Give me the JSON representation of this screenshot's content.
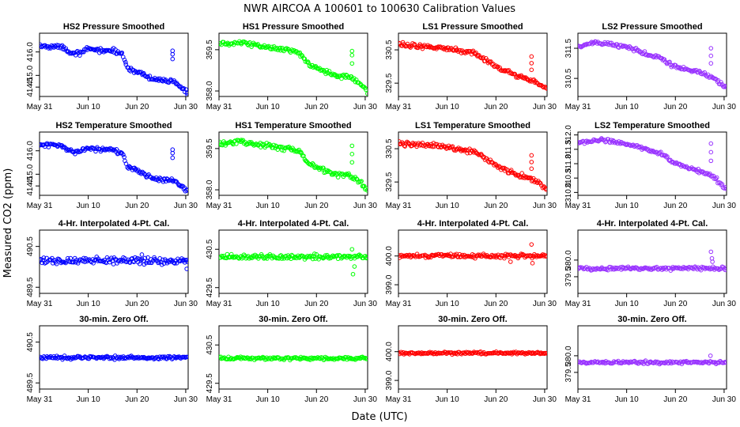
{
  "figure": {
    "title": "NWR   AIRCOA A   100601 to 100630   Calibration Values",
    "xlabel": "Date (UTC)",
    "ylabel": "Measured CO2 (ppm)",
    "x_tick_labels": [
      "May 31",
      "Jun 10",
      "Jun 20",
      "Jun 30"
    ],
    "x_tick_days": [
      0,
      10,
      20,
      30
    ],
    "xlim_days": [
      0,
      30.5
    ],
    "rows": [
      {
        "label": "Pressure Smoothed",
        "style": "trend"
      },
      {
        "label": "Temperature Smoothed",
        "style": "trend"
      },
      {
        "label": "4-Hr. Interpolated 4-Pt. Cal.",
        "style": "interp"
      },
      {
        "label": "30-min. Zero Off.",
        "style": "zero"
      }
    ]
  },
  "chart_data": [
    {
      "type": "scatter",
      "row": 0,
      "col": 0,
      "title": "HS2 Pressure Smoothed",
      "color": "#0000ff",
      "ylim": [
        414.1,
        416.8
      ],
      "yticks": [
        414.5,
        415.0,
        416.0
      ],
      "trend": [
        [
          0,
          416.25
        ],
        [
          5,
          416.2
        ],
        [
          6,
          416.0
        ],
        [
          8,
          415.95
        ],
        [
          10,
          416.1
        ],
        [
          15,
          416.05
        ],
        [
          17,
          415.9
        ],
        [
          18,
          415.35
        ],
        [
          21,
          415.05
        ],
        [
          23,
          414.85
        ],
        [
          25,
          414.75
        ],
        [
          27,
          414.8
        ],
        [
          28.5,
          414.6
        ],
        [
          30.5,
          414.2
        ]
      ],
      "spike": {
        "day": 27.3,
        "values": [
          415.7,
          415.9,
          416.05
        ]
      },
      "noise": 0.07
    },
    {
      "type": "scatter",
      "row": 0,
      "col": 1,
      "title": "HS1 Pressure Smoothed",
      "color": "#00ff00",
      "ylim": [
        357.8,
        360.1
      ],
      "yticks": [
        358.0,
        359.5
      ],
      "trend": [
        [
          0,
          359.7
        ],
        [
          5,
          359.75
        ],
        [
          10,
          359.6
        ],
        [
          16,
          359.45
        ],
        [
          17,
          359.3
        ],
        [
          18,
          359.0
        ],
        [
          21,
          358.75
        ],
        [
          24,
          358.55
        ],
        [
          27,
          358.5
        ],
        [
          29,
          358.3
        ],
        [
          30.5,
          357.95
        ]
      ],
      "spike": {
        "day": 27.3,
        "values": [
          359.0,
          359.3,
          359.45
        ]
      },
      "noise": 0.06
    },
    {
      "type": "scatter",
      "row": 0,
      "col": 2,
      "title": "LS1 Pressure Smoothed",
      "color": "#ff0000",
      "ylim": [
        329.1,
        331.0
      ],
      "yticks": [
        329.5,
        330.5
      ],
      "trend": [
        [
          0,
          330.65
        ],
        [
          6,
          330.6
        ],
        [
          10,
          330.55
        ],
        [
          16,
          330.4
        ],
        [
          18,
          330.2
        ],
        [
          21,
          329.9
        ],
        [
          24,
          329.75
        ],
        [
          28,
          329.55
        ],
        [
          30.5,
          329.3
        ]
      ],
      "spike": {
        "day": 27.3,
        "values": [
          329.9,
          330.1,
          330.3
        ]
      },
      "noise": 0.05
    },
    {
      "type": "scatter",
      "row": 0,
      "col": 3,
      "title": "LS2 Pressure Smoothed",
      "color": "#9933ff",
      "ylim": [
        309.9,
        312.0
      ],
      "yticks": [
        310.5,
        311.5
      ],
      "trend": [
        [
          0,
          311.55
        ],
        [
          4,
          311.7
        ],
        [
          10,
          311.55
        ],
        [
          14,
          311.3
        ],
        [
          17,
          311.2
        ],
        [
          19,
          310.95
        ],
        [
          22,
          310.8
        ],
        [
          25,
          310.7
        ],
        [
          28,
          310.5
        ],
        [
          30.5,
          310.15
        ]
      ],
      "spike": {
        "day": 27.3,
        "values": [
          311.0,
          311.25,
          311.5
        ]
      },
      "noise": 0.05
    },
    {
      "type": "scatter",
      "row": 1,
      "col": 0,
      "title": "HS2 Temperature Smoothed",
      "color": "#0000ff",
      "ylim": [
        414.1,
        416.8
      ],
      "yticks": [
        414.5,
        415.0,
        416.0
      ],
      "trend": [
        [
          0,
          416.25
        ],
        [
          5,
          416.2
        ],
        [
          6,
          416.0
        ],
        [
          8,
          415.95
        ],
        [
          10,
          416.1
        ],
        [
          15,
          416.05
        ],
        [
          17,
          415.9
        ],
        [
          18,
          415.35
        ],
        [
          21,
          415.05
        ],
        [
          23,
          414.85
        ],
        [
          25,
          414.75
        ],
        [
          27,
          414.8
        ],
        [
          28.5,
          414.6
        ],
        [
          30.5,
          414.25
        ]
      ],
      "spike": {
        "day": 27.3,
        "values": [
          415.7,
          415.9,
          416.05
        ]
      },
      "noise": 0.07
    },
    {
      "type": "scatter",
      "row": 1,
      "col": 1,
      "title": "HS1 Temperature Smoothed",
      "color": "#00ff00",
      "ylim": [
        357.8,
        360.1
      ],
      "yticks": [
        358.0,
        359.5
      ],
      "trend": [
        [
          0,
          359.7
        ],
        [
          5,
          359.75
        ],
        [
          10,
          359.6
        ],
        [
          16,
          359.45
        ],
        [
          17,
          359.3
        ],
        [
          18,
          359.0
        ],
        [
          21,
          358.75
        ],
        [
          24,
          358.55
        ],
        [
          27,
          358.5
        ],
        [
          29,
          358.3
        ],
        [
          30.5,
          357.95
        ]
      ],
      "spike": {
        "day": 27.3,
        "values": [
          359.0,
          359.3,
          359.6
        ]
      },
      "noise": 0.06
    },
    {
      "type": "scatter",
      "row": 1,
      "col": 2,
      "title": "LS1 Temperature Smoothed",
      "color": "#ff0000",
      "ylim": [
        329.1,
        331.0
      ],
      "yticks": [
        329.5,
        330.5
      ],
      "trend": [
        [
          0,
          330.65
        ],
        [
          6,
          330.6
        ],
        [
          10,
          330.55
        ],
        [
          16,
          330.4
        ],
        [
          18,
          330.2
        ],
        [
          21,
          329.9
        ],
        [
          24,
          329.75
        ],
        [
          28,
          329.55
        ],
        [
          30.5,
          329.3
        ]
      ],
      "spike": {
        "day": 27.3,
        "values": [
          329.9,
          330.1,
          330.3
        ]
      },
      "noise": 0.05
    },
    {
      "type": "scatter",
      "row": 1,
      "col": 3,
      "title": "LS2 Temperature Smoothed",
      "color": "#9933ff",
      "ylim": [
        309.9,
        312.1
      ],
      "yticks": [
        310.0,
        310.5,
        311.0,
        311.5,
        312.0
      ],
      "trend": [
        [
          0,
          311.7
        ],
        [
          4,
          311.85
        ],
        [
          10,
          311.7
        ],
        [
          14,
          311.5
        ],
        [
          17,
          311.35
        ],
        [
          19,
          311.1
        ],
        [
          22,
          310.9
        ],
        [
          25,
          310.75
        ],
        [
          28,
          310.5
        ],
        [
          30.5,
          310.15
        ]
      ],
      "spike": {
        "day": 27.3,
        "values": [
          311.1,
          311.4,
          311.7
        ]
      },
      "noise": 0.05
    },
    {
      "type": "scatter",
      "row": 2,
      "col": 0,
      "title": "4-Hr. Interpolated 4-Pt. Cal.",
      "color": "#0000ff",
      "ylim": [
        489.35,
        490.9
      ],
      "yticks": [
        489.5,
        490.5
      ],
      "trend": [
        [
          0,
          490.15
        ],
        [
          30.5,
          490.15
        ]
      ],
      "noise": 0.06,
      "outliers": [
        [
          30.2,
          489.95
        ],
        [
          21,
          490.3
        ]
      ]
    },
    {
      "type": "scatter",
      "row": 2,
      "col": 1,
      "title": "4-Hr. Interpolated 4-Pt. Cal.",
      "color": "#00ff00",
      "ylim": [
        429.35,
        431.0
      ],
      "yticks": [
        429.5,
        430.5
      ],
      "trend": [
        [
          0,
          430.3
        ],
        [
          30.5,
          430.3
        ]
      ],
      "noise": 0.05,
      "outliers": [
        [
          27.3,
          430.5
        ],
        [
          27.5,
          429.85
        ],
        [
          27.8,
          430.05
        ]
      ]
    },
    {
      "type": "scatter",
      "row": 2,
      "col": 2,
      "title": "4-Hr. Interpolated 4-Pt. Cal.",
      "color": "#ff0000",
      "ylim": [
        398.7,
        400.9
      ],
      "yticks": [
        399.0,
        400.0
      ],
      "trend": [
        [
          0,
          400.0
        ],
        [
          30.5,
          400.0
        ]
      ],
      "noise": 0.05,
      "outliers": [
        [
          27.3,
          400.4
        ],
        [
          27.5,
          399.75
        ],
        [
          23,
          399.8
        ]
      ]
    },
    {
      "type": "scatter",
      "row": 2,
      "col": 3,
      "title": "4-Hr. Interpolated 4-Pt. Cal.",
      "color": "#9933ff",
      "ylim": [
        379.0,
        380.9
      ],
      "yticks": [
        379.5,
        380.0
      ],
      "trend": [
        [
          0,
          379.75
        ],
        [
          30.5,
          379.75
        ]
      ],
      "noise": 0.04,
      "outliers": [
        [
          27.3,
          380.25
        ],
        [
          27.5,
          380.05
        ],
        [
          27.6,
          379.95
        ]
      ]
    },
    {
      "type": "scatter",
      "row": 3,
      "col": 0,
      "title": "30-min. Zero Off.",
      "color": "#0000ff",
      "ylim": [
        489.35,
        490.9
      ],
      "yticks": [
        489.5,
        490.5
      ],
      "trend": [
        [
          0,
          490.12
        ],
        [
          30.5,
          490.12
        ]
      ],
      "noise": 0.03
    },
    {
      "type": "scatter",
      "row": 3,
      "col": 1,
      "title": "30-min. Zero Off.",
      "color": "#00ff00",
      "ylim": [
        429.35,
        431.0
      ],
      "yticks": [
        429.5,
        430.5
      ],
      "trend": [
        [
          0,
          430.15
        ],
        [
          30.5,
          430.15
        ]
      ],
      "noise": 0.03
    },
    {
      "type": "scatter",
      "row": 3,
      "col": 2,
      "title": "30-min. Zero Off.",
      "color": "#ff0000",
      "ylim": [
        398.7,
        400.9
      ],
      "yticks": [
        399.0,
        400.0
      ],
      "trend": [
        [
          0,
          399.95
        ],
        [
          30.5,
          399.95
        ]
      ],
      "noise": 0.03
    },
    {
      "type": "scatter",
      "row": 3,
      "col": 3,
      "title": "30-min. Zero Off.",
      "color": "#9933ff",
      "ylim": [
        379.0,
        380.9
      ],
      "yticks": [
        379.5,
        380.0
      ],
      "trend": [
        [
          0,
          379.8
        ],
        [
          30.5,
          379.8
        ]
      ],
      "noise": 0.03,
      "outliers": [
        [
          27.2,
          380.0
        ]
      ]
    }
  ]
}
